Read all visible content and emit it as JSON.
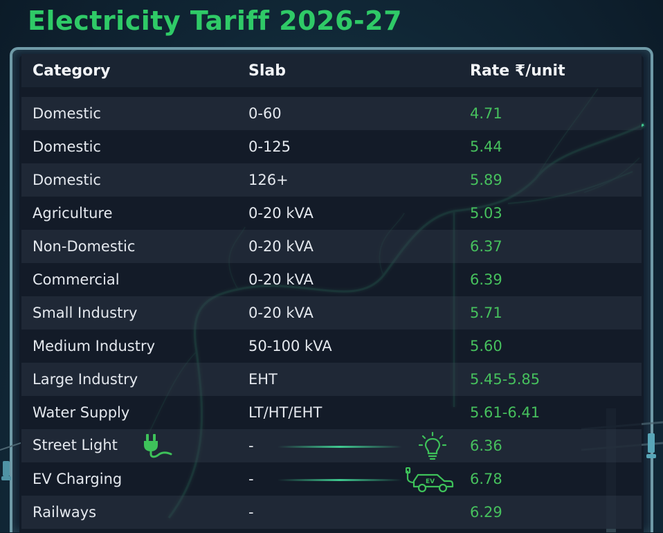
{
  "title": "Electricity Tariff 2026-27",
  "columns": {
    "category": "Category",
    "slab": "Slab",
    "rate": "Rate ₹/unit"
  },
  "rows": [
    {
      "category": "Domestic",
      "slab": "0-60",
      "rate": "4.71"
    },
    {
      "category": "Domestic",
      "slab": "0-125",
      "rate": "5.44"
    },
    {
      "category": "Domestic",
      "slab": "126+",
      "rate": "5.89"
    },
    {
      "category": "Agriculture",
      "slab": "0-20 kVA",
      "rate": "5.03"
    },
    {
      "category": "Non-Domestic",
      "slab": "0-20 kVA",
      "rate": "6.37"
    },
    {
      "category": "Commercial",
      "slab": "0-20 kVA",
      "rate": "6.39"
    },
    {
      "category": "Small Industry",
      "slab": "0-20 kVA",
      "rate": "5.71"
    },
    {
      "category": "Medium Industry",
      "slab": "50-100 kVA",
      "rate": "5.60"
    },
    {
      "category": "Large Industry",
      "slab": "EHT",
      "rate": "5.45-5.85"
    },
    {
      "category": "Water Supply",
      "slab": "LT/HT/EHT",
      "rate": "5.61-6.41"
    },
    {
      "category": "Street Light",
      "slab": "-",
      "rate": "6.36"
    },
    {
      "category": "EV Charging",
      "slab": "-",
      "rate": "6.78"
    },
    {
      "category": "Railways",
      "slab": "-",
      "rate": "6.29"
    }
  ],
  "icons": {
    "plug": "plug-icon",
    "bulb": "lightbulb-icon",
    "ev": "ev-car-icon",
    "ev_text": "EV"
  },
  "colors": {
    "title": "#2fca67",
    "rate": "#46c05d",
    "frame": "#6f9aa7",
    "accent_glow": "#46e6a0"
  }
}
